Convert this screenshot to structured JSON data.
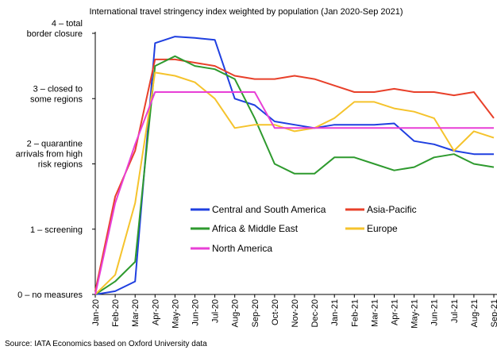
{
  "chart_data": {
    "type": "line",
    "title": "International travel stringency index weighted by population (Jan 2020-Sep 2021)",
    "source": "Source: IATA Economics based on Oxford University data",
    "x": [
      "Jan-20",
      "Feb-20",
      "Mar-20",
      "Apr-20",
      "May-20",
      "Jun-20",
      "Jul-20",
      "Aug-20",
      "Sep-20",
      "Oct-20",
      "Nov-20",
      "Dec-20",
      "Jan-21",
      "Feb-21",
      "Mar-21",
      "Apr-21",
      "May-21",
      "Jun-21",
      "Jul-21",
      "Aug-21",
      "Sep-21"
    ],
    "ylim": [
      0,
      4
    ],
    "yticks": [
      {
        "value": 0,
        "label": "0 – no measures"
      },
      {
        "value": 1,
        "label": "1 – screening"
      },
      {
        "value": 2,
        "label": "2 – quarantine\narrivals from high\nrisk regions"
      },
      {
        "value": 3,
        "label": "3 – closed to\nsome regions"
      },
      {
        "value": 4,
        "label": "4 – total\nborder closure"
      }
    ],
    "series": [
      {
        "name": "Central and South America",
        "color": "#1f3fe0",
        "values": [
          0,
          0.05,
          0.2,
          3.85,
          3.95,
          3.93,
          3.9,
          3.0,
          2.9,
          2.65,
          2.6,
          2.55,
          2.6,
          2.6,
          2.6,
          2.62,
          2.35,
          2.3,
          2.2,
          2.15,
          2.15
        ]
      },
      {
        "name": "Asia-Pacific",
        "color": "#e8402a",
        "values": [
          0.05,
          1.5,
          2.2,
          3.6,
          3.6,
          3.55,
          3.5,
          3.35,
          3.3,
          3.3,
          3.35,
          3.3,
          3.2,
          3.1,
          3.1,
          3.15,
          3.1,
          3.1,
          3.05,
          3.1,
          2.7
        ]
      },
      {
        "name": "Africa & Middle East",
        "color": "#2e9a2e",
        "values": [
          0,
          0.2,
          0.5,
          3.5,
          3.65,
          3.5,
          3.45,
          3.3,
          2.7,
          2.0,
          1.85,
          1.85,
          2.1,
          2.1,
          2.0,
          1.9,
          1.95,
          2.1,
          2.15,
          2.0,
          1.95
        ]
      },
      {
        "name": "Europe",
        "color": "#f5c32c",
        "values": [
          0,
          0.3,
          1.4,
          3.4,
          3.35,
          3.25,
          3.0,
          2.55,
          2.6,
          2.6,
          2.5,
          2.55,
          2.7,
          2.95,
          2.95,
          2.85,
          2.8,
          2.7,
          2.2,
          2.5,
          2.4
        ]
      },
      {
        "name": "North America",
        "color": "#e83fd6",
        "values": [
          0,
          1.4,
          2.3,
          3.1,
          3.1,
          3.1,
          3.1,
          3.1,
          3.1,
          2.55,
          2.55,
          2.55,
          2.55,
          2.55,
          2.55,
          2.55,
          2.55,
          2.55,
          2.55,
          2.55,
          2.55
        ]
      }
    ]
  }
}
